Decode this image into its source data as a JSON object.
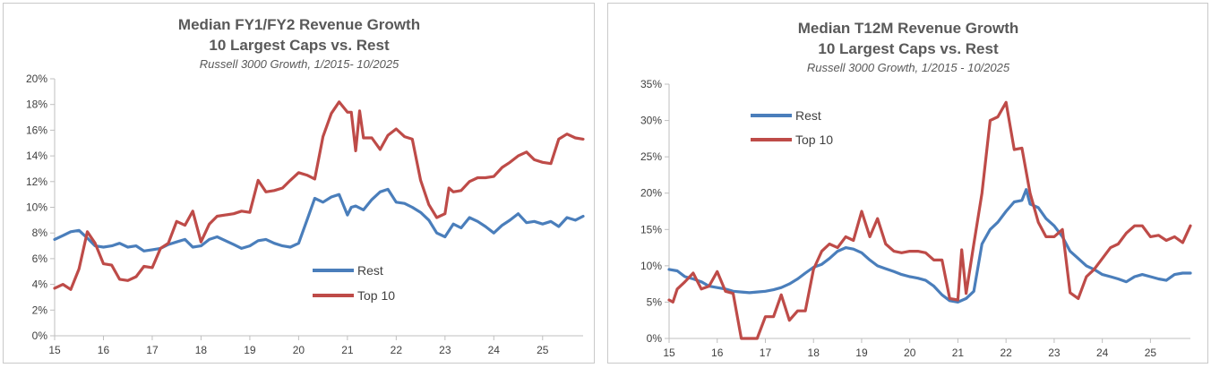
{
  "colors": {
    "rest": "#4a7ebb",
    "top10": "#be4b48",
    "axis": "#bfbfbf",
    "text": "#404040"
  },
  "chart_data": [
    {
      "type": "line",
      "title": "Median FY1/FY2 Revenue Growth",
      "title2": "10 Largest Caps vs. Rest",
      "subtitle": "Russell 3000 Growth, 1/2015- 10/2025",
      "xlabel": "",
      "ylabel": "",
      "xlim": [
        15,
        25.83
      ],
      "ylim": [
        0,
        0.2
      ],
      "x_ticks": [
        15,
        16,
        17,
        18,
        19,
        20,
        21,
        22,
        23,
        24,
        25
      ],
      "x_tick_labels": [
        "15",
        "16",
        "17",
        "18",
        "19",
        "20",
        "21",
        "22",
        "23",
        "24",
        "25"
      ],
      "y_ticks": [
        0,
        0.02,
        0.04,
        0.06,
        0.08,
        0.1,
        0.12,
        0.14,
        0.16,
        0.18,
        0.2
      ],
      "y_tick_labels": [
        "0%",
        "2%",
        "4%",
        "6%",
        "8%",
        "10%",
        "12%",
        "14%",
        "16%",
        "18%",
        "20%"
      ],
      "legend_position": "bottom-center",
      "grid": false,
      "series": [
        {
          "name": "Rest",
          "x": [
            15.0,
            15.17,
            15.33,
            15.5,
            15.67,
            15.83,
            16.0,
            16.17,
            16.33,
            16.5,
            16.67,
            16.83,
            17.0,
            17.17,
            17.33,
            17.5,
            17.67,
            17.83,
            18.0,
            18.17,
            18.33,
            18.5,
            18.67,
            18.83,
            19.0,
            19.17,
            19.33,
            19.5,
            19.67,
            19.83,
            20.0,
            20.17,
            20.33,
            20.5,
            20.67,
            20.83,
            21.0,
            21.08,
            21.17,
            21.33,
            21.5,
            21.67,
            21.83,
            22.0,
            22.17,
            22.33,
            22.5,
            22.67,
            22.83,
            23.0,
            23.17,
            23.33,
            23.5,
            23.67,
            23.83,
            24.0,
            24.17,
            24.33,
            24.5,
            24.67,
            24.83,
            25.0,
            25.17,
            25.33,
            25.5,
            25.67,
            25.83
          ],
          "y": [
            0.075,
            0.078,
            0.081,
            0.082,
            0.076,
            0.07,
            0.069,
            0.07,
            0.072,
            0.069,
            0.07,
            0.066,
            0.067,
            0.068,
            0.071,
            0.073,
            0.075,
            0.069,
            0.07,
            0.075,
            0.077,
            0.074,
            0.071,
            0.068,
            0.07,
            0.074,
            0.075,
            0.072,
            0.07,
            0.069,
            0.072,
            0.09,
            0.107,
            0.104,
            0.108,
            0.11,
            0.094,
            0.1,
            0.101,
            0.098,
            0.106,
            0.112,
            0.114,
            0.104,
            0.103,
            0.1,
            0.096,
            0.09,
            0.08,
            0.077,
            0.087,
            0.084,
            0.092,
            0.089,
            0.085,
            0.08,
            0.086,
            0.09,
            0.095,
            0.088,
            0.089,
            0.087,
            0.089,
            0.085,
            0.092,
            0.09,
            0.093
          ]
        },
        {
          "name": "Top 10",
          "x": [
            15.0,
            15.17,
            15.33,
            15.5,
            15.67,
            15.83,
            16.0,
            16.17,
            16.33,
            16.5,
            16.67,
            16.83,
            17.0,
            17.17,
            17.33,
            17.5,
            17.67,
            17.83,
            18.0,
            18.17,
            18.33,
            18.5,
            18.67,
            18.83,
            19.0,
            19.17,
            19.33,
            19.5,
            19.67,
            19.83,
            20.0,
            20.17,
            20.33,
            20.5,
            20.67,
            20.83,
            21.0,
            21.08,
            21.17,
            21.25,
            21.33,
            21.5,
            21.67,
            21.83,
            22.0,
            22.17,
            22.33,
            22.5,
            22.67,
            22.83,
            23.0,
            23.08,
            23.17,
            23.33,
            23.5,
            23.67,
            23.83,
            24.0,
            24.17,
            24.33,
            24.5,
            24.67,
            24.83,
            25.0,
            25.17,
            25.33,
            25.5,
            25.67,
            25.83
          ],
          "y": [
            0.037,
            0.04,
            0.036,
            0.052,
            0.081,
            0.072,
            0.056,
            0.055,
            0.044,
            0.043,
            0.046,
            0.054,
            0.053,
            0.068,
            0.072,
            0.089,
            0.086,
            0.097,
            0.073,
            0.087,
            0.093,
            0.094,
            0.095,
            0.097,
            0.096,
            0.121,
            0.112,
            0.113,
            0.115,
            0.121,
            0.127,
            0.125,
            0.122,
            0.155,
            0.173,
            0.182,
            0.174,
            0.174,
            0.144,
            0.175,
            0.154,
            0.154,
            0.145,
            0.156,
            0.161,
            0.155,
            0.153,
            0.121,
            0.102,
            0.092,
            0.095,
            0.115,
            0.112,
            0.113,
            0.12,
            0.123,
            0.123,
            0.124,
            0.131,
            0.135,
            0.14,
            0.143,
            0.137,
            0.135,
            0.134,
            0.153,
            0.157,
            0.154,
            0.153
          ]
        }
      ]
    },
    {
      "type": "line",
      "title": "Median T12M Revenue Growth",
      "title2": "10 Largest Caps vs. Rest",
      "subtitle": "Russell 3000 Growth, 1/2015 - 10/2025",
      "xlabel": "",
      "ylabel": "",
      "xlim": [
        15,
        25.83
      ],
      "ylim": [
        0,
        0.35
      ],
      "x_ticks": [
        15,
        16,
        17,
        18,
        19,
        20,
        21,
        22,
        23,
        24,
        25
      ],
      "x_tick_labels": [
        "15",
        "16",
        "17",
        "18",
        "19",
        "20",
        "21",
        "22",
        "23",
        "24",
        "25"
      ],
      "y_ticks": [
        0,
        0.05,
        0.1,
        0.15,
        0.2,
        0.25,
        0.3,
        0.35
      ],
      "y_tick_labels": [
        "0%",
        "5%",
        "10%",
        "15%",
        "20%",
        "25%",
        "30%",
        "35%"
      ],
      "legend_position": "top-left",
      "grid": false,
      "series": [
        {
          "name": "Rest",
          "x": [
            15.0,
            15.17,
            15.33,
            15.5,
            15.67,
            15.83,
            16.0,
            16.17,
            16.33,
            16.5,
            16.67,
            16.83,
            17.0,
            17.17,
            17.33,
            17.5,
            17.67,
            17.83,
            18.0,
            18.17,
            18.33,
            18.5,
            18.67,
            18.83,
            19.0,
            19.17,
            19.33,
            19.5,
            19.67,
            19.83,
            20.0,
            20.17,
            20.33,
            20.5,
            20.67,
            20.83,
            21.0,
            21.17,
            21.33,
            21.5,
            21.67,
            21.83,
            22.0,
            22.17,
            22.33,
            22.42,
            22.5,
            22.67,
            22.83,
            23.0,
            23.17,
            23.33,
            23.5,
            23.67,
            23.83,
            24.0,
            24.17,
            24.33,
            24.5,
            24.67,
            24.83,
            25.0,
            25.17,
            25.33,
            25.5,
            25.67,
            25.83
          ],
          "y": [
            0.095,
            0.093,
            0.085,
            0.082,
            0.078,
            0.072,
            0.07,
            0.068,
            0.065,
            0.064,
            0.063,
            0.064,
            0.065,
            0.067,
            0.07,
            0.075,
            0.082,
            0.09,
            0.098,
            0.102,
            0.11,
            0.12,
            0.125,
            0.123,
            0.118,
            0.108,
            0.1,
            0.096,
            0.092,
            0.088,
            0.085,
            0.083,
            0.08,
            0.072,
            0.06,
            0.052,
            0.05,
            0.055,
            0.065,
            0.13,
            0.15,
            0.16,
            0.175,
            0.188,
            0.19,
            0.205,
            0.185,
            0.18,
            0.165,
            0.155,
            0.14,
            0.12,
            0.11,
            0.1,
            0.095,
            0.088,
            0.085,
            0.082,
            0.078,
            0.085,
            0.088,
            0.085,
            0.082,
            0.08,
            0.088,
            0.09,
            0.09
          ]
        },
        {
          "name": "Top 10",
          "x": [
            15.0,
            15.08,
            15.17,
            15.33,
            15.5,
            15.67,
            15.83,
            16.0,
            16.17,
            16.33,
            16.5,
            16.67,
            16.83,
            17.0,
            17.17,
            17.33,
            17.5,
            17.67,
            17.83,
            18.0,
            18.17,
            18.33,
            18.5,
            18.67,
            18.83,
            19.0,
            19.17,
            19.33,
            19.5,
            19.67,
            19.83,
            20.0,
            20.17,
            20.33,
            20.5,
            20.67,
            20.83,
            21.0,
            21.08,
            21.17,
            21.33,
            21.5,
            21.67,
            21.83,
            22.0,
            22.17,
            22.33,
            22.5,
            22.67,
            22.83,
            23.0,
            23.17,
            23.33,
            23.5,
            23.67,
            23.83,
            24.0,
            24.17,
            24.33,
            24.5,
            24.67,
            24.83,
            25.0,
            25.17,
            25.33,
            25.5,
            25.67,
            25.83
          ],
          "y": [
            0.053,
            0.05,
            0.068,
            0.078,
            0.09,
            0.068,
            0.072,
            0.092,
            0.065,
            0.062,
            0.0,
            0.0,
            0.0,
            0.03,
            0.03,
            0.06,
            0.025,
            0.038,
            0.038,
            0.095,
            0.12,
            0.13,
            0.125,
            0.14,
            0.135,
            0.175,
            0.14,
            0.165,
            0.13,
            0.12,
            0.118,
            0.12,
            0.12,
            0.118,
            0.108,
            0.108,
            0.055,
            0.053,
            0.122,
            0.062,
            0.13,
            0.2,
            0.3,
            0.305,
            0.325,
            0.26,
            0.262,
            0.2,
            0.16,
            0.14,
            0.14,
            0.15,
            0.063,
            0.055,
            0.085,
            0.095,
            0.11,
            0.125,
            0.13,
            0.145,
            0.155,
            0.155,
            0.14,
            0.142,
            0.135,
            0.14,
            0.132,
            0.155
          ]
        }
      ]
    }
  ]
}
